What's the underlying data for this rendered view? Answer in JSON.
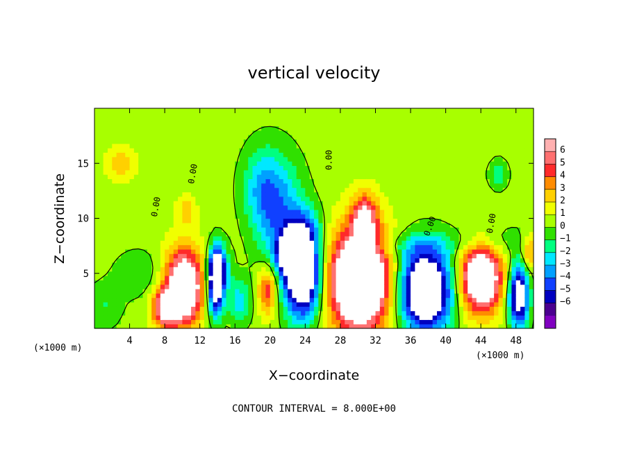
{
  "chart_data": {
    "type": "heatmap",
    "title": "vertical velocity",
    "xlabel": "X−coordinate",
    "ylabel": "Z−coordinate",
    "x_unit_label": "(×1000 m)",
    "y_unit_label": "(×1000 m)",
    "xlim": [
      0,
      50
    ],
    "ylim": [
      0,
      20
    ],
    "x_ticks": [
      4,
      8,
      12,
      16,
      20,
      24,
      28,
      32,
      36,
      40,
      44,
      48
    ],
    "y_ticks": [
      5,
      10,
      15
    ],
    "contour_interval_text": "CONTOUR INTERVAL = 8.000E+00",
    "contour_label": "0.00",
    "colorbar": {
      "levels": [
        6,
        5,
        4,
        3,
        2,
        1,
        0,
        -1,
        -2,
        -3,
        -4,
        -5,
        -6
      ],
      "colors": [
        "#ffb0b0",
        "#ff7070",
        "#ff2a2a",
        "#ff8c00",
        "#ffd000",
        "#f0ff00",
        "#a8ff00",
        "#30e000",
        "#00ff80",
        "#00e8ff",
        "#00a0ff",
        "#1040ff",
        "#0000c0",
        "#4b0090",
        "#8000c0"
      ]
    },
    "background_value": 0.5,
    "features": [
      {
        "x": 10.2,
        "z": 3.8,
        "sx": 1.5,
        "sz": 2.4,
        "w": 9.5
      },
      {
        "x": 8.0,
        "z": 1.8,
        "sx": 1.0,
        "sz": 1.2,
        "w": 6
      },
      {
        "x": 13.8,
        "z": 4.0,
        "sx": 0.6,
        "sz": 2.0,
        "w": -9
      },
      {
        "x": 14.2,
        "z": 5.5,
        "sx": 0.8,
        "sz": 1.5,
        "w": -5
      },
      {
        "x": 19.7,
        "z": 3.5,
        "sx": 0.8,
        "sz": 1.6,
        "w": 4.5
      },
      {
        "x": 23.7,
        "z": 4.6,
        "sx": 1.5,
        "sz": 2.6,
        "w": -10
      },
      {
        "x": 22.5,
        "z": 6.8,
        "sx": 1.2,
        "sz": 1.3,
        "w": -7
      },
      {
        "x": 21.0,
        "z": 10.5,
        "sx": 2.0,
        "sz": 3.5,
        "w": -4
      },
      {
        "x": 19.0,
        "z": 13.0,
        "sx": 1.6,
        "sz": 2.5,
        "w": -2.5
      },
      {
        "x": 24.0,
        "z": 9.0,
        "sx": 1.3,
        "sz": 1.5,
        "w": -3.5
      },
      {
        "x": 30.2,
        "z": 4.4,
        "sx": 2.4,
        "sz": 3.2,
        "w": 12
      },
      {
        "x": 30.8,
        "z": 10.2,
        "sx": 1.0,
        "sz": 1.5,
        "w": 5
      },
      {
        "x": 37.7,
        "z": 3.5,
        "sx": 2.1,
        "sz": 2.6,
        "w": -11
      },
      {
        "x": 44.0,
        "z": 4.6,
        "sx": 1.7,
        "sz": 2.2,
        "w": 9.5
      },
      {
        "x": 48.3,
        "z": 3.0,
        "sx": 0.8,
        "sz": 2.0,
        "w": -9
      },
      {
        "x": 16.5,
        "z": 2.5,
        "sx": 1.0,
        "sz": 1.5,
        "w": -3
      },
      {
        "x": 5.0,
        "z": 5.0,
        "sx": 2.0,
        "sz": 1.5,
        "w": -1.5
      },
      {
        "x": 1.0,
        "z": 2.0,
        "sx": 1.5,
        "sz": 1.5,
        "w": -1.5
      },
      {
        "x": 3.0,
        "z": 15.0,
        "sx": 1.2,
        "sz": 1.2,
        "w": 2.0
      },
      {
        "x": 10.5,
        "z": 10.7,
        "sx": 0.8,
        "sz": 1.0,
        "w": 2.0
      },
      {
        "x": 46.0,
        "z": 14.0,
        "sx": 0.8,
        "sz": 1.0,
        "w": -2
      },
      {
        "x": 35.5,
        "z": 7.5,
        "sx": 3.5,
        "sz": 0.8,
        "w": -1.5
      },
      {
        "x": 45.0,
        "z": 8.0,
        "sx": 3.5,
        "sz": 1.0,
        "w": -1.5
      },
      {
        "x": 49.5,
        "z": 7.0,
        "sx": 0.6,
        "sz": 1.2,
        "w": 3
      }
    ]
  }
}
